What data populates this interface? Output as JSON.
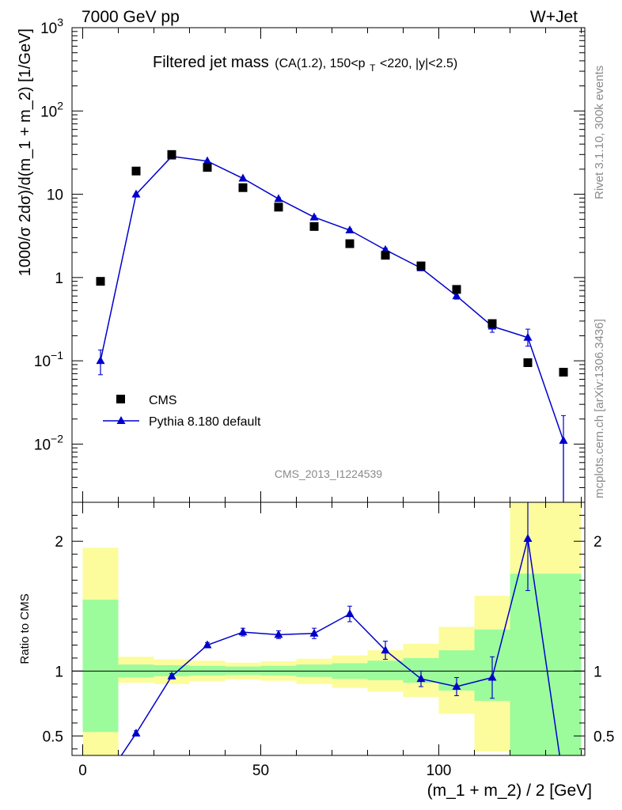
{
  "header": {
    "left": "7000 GeV pp",
    "right": "W+Jet"
  },
  "side": {
    "rivet": "Rivet 3.1.10,  300k events",
    "mcplots": "mcplots.cern.ch [arXiv:1306.3436]"
  },
  "analysis_id": "CMS_2013_I1224539",
  "plot_title": {
    "main": "Filtered jet mass",
    "sub": "(CA(1.2), 150<p",
    "sub_index": "T",
    "sub_rest": "<220, |y|<2.5)"
  },
  "colors": {
    "mc": "#0000cc",
    "data": "#000000",
    "band_stat": "#9cfc9c",
    "band_total": "#fcfc9c"
  },
  "chart_data": [
    {
      "type": "scatter",
      "panel": "main",
      "ylabel": "1000/σ 2dσ)/d(m_1 + m_2) [1/GeV]",
      "yscale": "log",
      "ylim": [
        0.002,
        1000
      ],
      "xlim": [
        -3,
        141
      ],
      "y_tick_labels": [
        "10^-2",
        "10^-1",
        "1",
        "10",
        "10^2",
        "10^3"
      ],
      "legend_position": "bottom-left",
      "series": [
        {
          "name": "CMS",
          "marker": "square",
          "x": [
            5,
            15,
            25,
            35,
            45,
            55,
            65,
            75,
            85,
            95,
            105,
            115,
            125,
            135
          ],
          "y": [
            0.9,
            19,
            30,
            21,
            12,
            7,
            4.1,
            2.55,
            1.85,
            1.38,
            0.72,
            0.28,
            0.095,
            0.073
          ]
        },
        {
          "name": "Pythia 8.180 default",
          "marker": "triangle",
          "x": [
            5,
            15,
            25,
            35,
            45,
            55,
            65,
            75,
            85,
            95,
            105,
            115,
            125,
            135
          ],
          "y": [
            0.1,
            10,
            28.5,
            25,
            15.5,
            8.8,
            5.3,
            3.7,
            2.15,
            1.3,
            0.6,
            0.26,
            0.19,
            0.011
          ],
          "yerr_low": [
            0.032,
            0.3,
            0.6,
            0.5,
            0.4,
            0.3,
            0.2,
            0.15,
            0.1,
            0.08,
            0.05,
            0.04,
            0.04,
            0.009
          ],
          "yerr_high": [
            0.035,
            0.3,
            0.6,
            0.5,
            0.4,
            0.3,
            0.2,
            0.15,
            0.1,
            0.08,
            0.05,
            0.04,
            0.05,
            0.011
          ]
        }
      ]
    },
    {
      "type": "line",
      "panel": "ratio",
      "ylabel": "Ratio to CMS",
      "xlabel": "(m_1 + m_2) / 2 [GeV]",
      "ylim": [
        0.35,
        2.3
      ],
      "xlim": [
        -3,
        141
      ],
      "x_tick_labels": [
        "0",
        "50",
        "100"
      ],
      "y_tick_labels": [
        "0.5",
        "1",
        "2"
      ],
      "reference_line": 1,
      "bands": {
        "x_edges": [
          0,
          10,
          20,
          30,
          40,
          50,
          60,
          70,
          80,
          90,
          100,
          110,
          120,
          140
        ],
        "stat_low": [
          0.53,
          0.95,
          0.96,
          0.965,
          0.97,
          0.965,
          0.955,
          0.94,
          0.93,
          0.91,
          0.85,
          0.77,
          0.35
        ],
        "stat_high": [
          1.55,
          1.05,
          1.045,
          1.04,
          1.035,
          1.04,
          1.05,
          1.06,
          1.08,
          1.1,
          1.16,
          1.32,
          1.75
        ],
        "total_low": [
          0.35,
          0.91,
          0.9,
          0.92,
          0.935,
          0.925,
          0.9,
          0.87,
          0.84,
          0.8,
          0.67,
          0.38,
          0.35
        ],
        "total_high": [
          1.95,
          1.11,
          1.09,
          1.08,
          1.065,
          1.075,
          1.095,
          1.12,
          1.16,
          1.21,
          1.34,
          1.58,
          2.3
        ]
      },
      "series": [
        {
          "name": "Pythia 8.180 default",
          "x": [
            5,
            15,
            25,
            35,
            45,
            55,
            65,
            75,
            85,
            95,
            105,
            115,
            125,
            135
          ],
          "y": [
            0.11,
            0.52,
            0.96,
            1.2,
            1.3,
            1.28,
            1.29,
            1.44,
            1.16,
            0.94,
            0.88,
            0.95,
            2.02,
            0.15
          ],
          "yerr_low": [
            0.03,
            0.02,
            0.02,
            0.02,
            0.03,
            0.03,
            0.04,
            0.06,
            0.07,
            0.06,
            0.07,
            0.16,
            0.4,
            0.1
          ],
          "yerr_high": [
            0.03,
            0.02,
            0.02,
            0.02,
            0.03,
            0.03,
            0.04,
            0.06,
            0.07,
            0.06,
            0.07,
            0.16,
            0.4,
            0.1
          ]
        }
      ]
    }
  ]
}
